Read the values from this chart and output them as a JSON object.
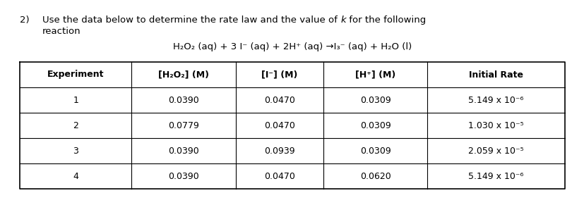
{
  "number": "2)",
  "line1_plain": "Use the data below to determine the rate law and the value of ",
  "line1_italic": "k",
  "line1_end": " for the following",
  "line2": "reaction",
  "equation": "H₂O₂ (aq) + 3 I⁻ (aq) + 2H⁺ (aq) →I₃⁻ (aq) + H₂O (l)",
  "col_headers": [
    "Experiment",
    "[H₂O₂] (M)",
    "[I⁻] (M)",
    "[H⁺] (M)",
    "Initial Rate"
  ],
  "rows": [
    [
      "1",
      "0.0390",
      "0.0470",
      "0.0309",
      "5.149 x 10⁻⁶"
    ],
    [
      "2",
      "0.0779",
      "0.0470",
      "0.0309",
      "1.030 x 10⁻⁵"
    ],
    [
      "3",
      "0.0390",
      "0.0939",
      "0.0309",
      "2.059 x 10⁻⁵"
    ],
    [
      "4",
      "0.0390",
      "0.0470",
      "0.0620",
      "5.149 x 10⁻⁶"
    ]
  ],
  "bg": "#ffffff",
  "fg": "#000000",
  "fs_title": 9.5,
  "fs_eq": 9.5,
  "fs_table": 9.0
}
